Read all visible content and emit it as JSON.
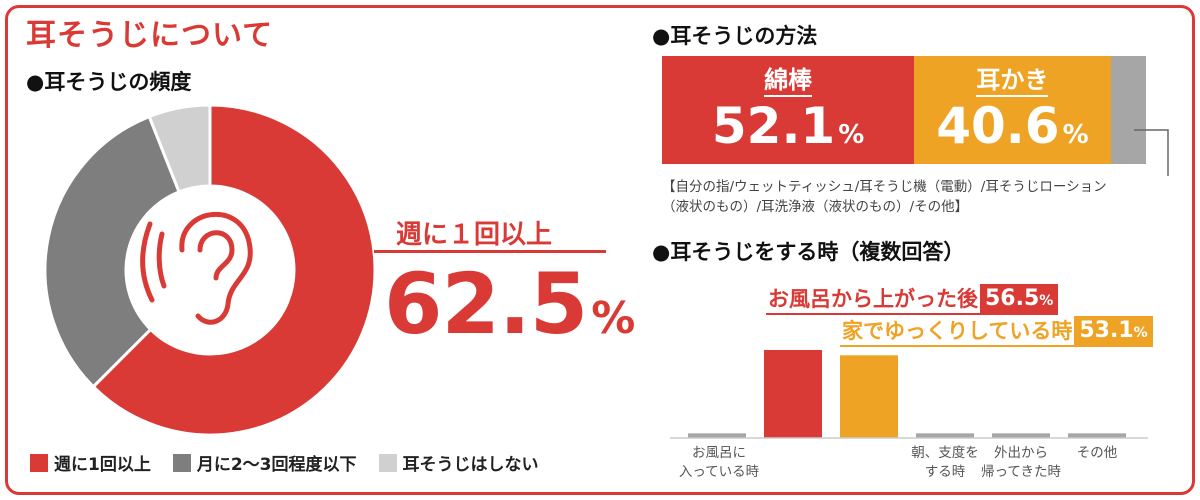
{
  "page": {
    "title": "耳そうじについて",
    "colors": {
      "red": "#d93a35",
      "orange": "#efa324",
      "dark_gray": "#7e7e7e",
      "light_gray": "#d0d0d0",
      "mid_gray": "#a6a6a6"
    }
  },
  "frequency": {
    "section_title": "●耳そうじの頻度",
    "highlight_label": "週に１回以上",
    "highlight_value": "62.5",
    "percent_sign": "%",
    "icon": "ear-icon",
    "legend": [
      {
        "label": "週に1回以上",
        "color": "#d93a35"
      },
      {
        "label": "月に2〜3回程度以下",
        "color": "#7e7e7e"
      },
      {
        "label": "耳そうじはしない",
        "color": "#d0d0d0"
      }
    ]
  },
  "method": {
    "section_title": "●耳そうじの方法",
    "segments": [
      {
        "label": "綿棒",
        "value": 52.1,
        "value_text": "52.1",
        "color": "#d93a35"
      },
      {
        "label": "耳かき",
        "value": 40.6,
        "value_text": "40.6",
        "color": "#efa324"
      },
      {
        "label": "",
        "value": 7.3,
        "value_text": "",
        "color": "#a6a6a6"
      }
    ],
    "percent_sign": "%",
    "other_note": "【自分の指/ウェットティッシュ/耳そうじ機（電動）/耳そうじローション\n（液状のもの）/耳洗浄液（液状のもの）/その他】"
  },
  "timing": {
    "section_title": "●耳そうじをする時（複数回答）",
    "callouts": [
      {
        "text": "お風呂から上がった後",
        "value": "56.5",
        "color": "#d93a35"
      },
      {
        "text": "家でゆっくりしている時",
        "value": "53.1",
        "color": "#efa324"
      }
    ],
    "percent_sign": "%",
    "x_labels": [
      "お風呂に\n入っている時",
      "",
      "",
      "朝、支度を\nする時",
      "外出から\n帰ってきた時",
      "その他"
    ]
  },
  "chart_data": [
    {
      "type": "pie",
      "title": "●耳そうじの頻度",
      "labels": [
        "週に1回以上",
        "月に2〜3回程度以下",
        "耳そうじはしない"
      ],
      "values": [
        62.5,
        31.5,
        6.0
      ],
      "colors": [
        "#d93a35",
        "#7e7e7e",
        "#d0d0d0"
      ],
      "legend": "bottom"
    },
    {
      "type": "bar",
      "title": "●耳そうじの方法",
      "categories": [
        "綿棒",
        "耳かき",
        ""
      ],
      "values": [
        52.1,
        40.6,
        7.3
      ],
      "colors": [
        "#d93a35",
        "#efa324",
        "#a6a6a6"
      ],
      "stacked": true
    },
    {
      "type": "bar",
      "title": "●耳そうじをする時（複数回答）",
      "categories": [
        "お風呂に入っている時",
        "お風呂から上がった後",
        "家でゆっくりしている時",
        "朝、支度をする時",
        "外出から帰ってきた時",
        "その他"
      ],
      "values": [
        3.0,
        56.5,
        53.1,
        3.0,
        3.0,
        3.0
      ],
      "colors": [
        "#a6a6a6",
        "#d93a35",
        "#efa324",
        "#a6a6a6",
        "#a6a6a6",
        "#a6a6a6"
      ],
      "ylim": [
        0,
        60
      ]
    }
  ]
}
